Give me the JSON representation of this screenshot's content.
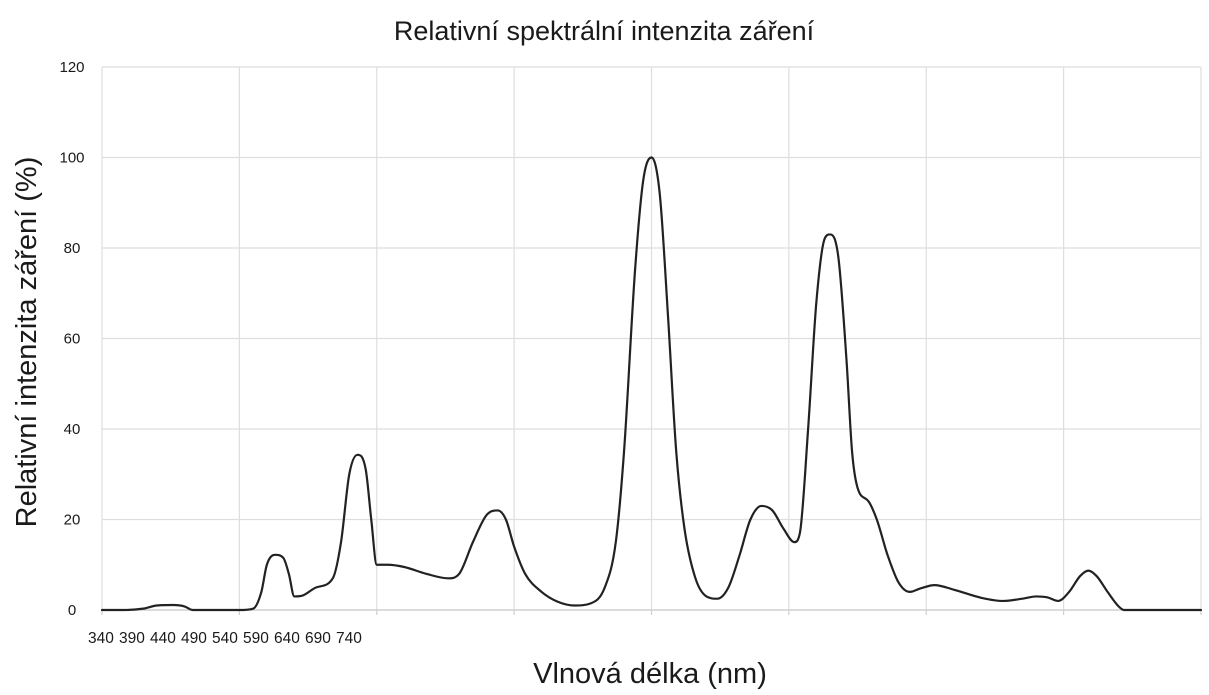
{
  "chart_data": {
    "type": "line",
    "title": "Relativní spektrální intenzita záření",
    "xlabel": "Vlnová délka (nm)",
    "ylabel": "Relativní intenzita záření (%)",
    "xlim": [
      340,
      740
    ],
    "ylim": [
      0,
      120
    ],
    "x_ticks": [
      "340",
      "390",
      "440",
      "490",
      "540",
      "590",
      "640",
      "690",
      "740"
    ],
    "y_ticks": [
      "0",
      "20",
      "40",
      "60",
      "80",
      "100",
      "120"
    ],
    "grid": true,
    "legend": "none",
    "line_color": "#222222",
    "series": [
      {
        "x": [
          340,
          348,
          355,
          360,
          366,
          370,
          373,
          380,
          390,
          395,
          398,
          400,
          403,
          406,
          408,
          410,
          413,
          418,
          424,
          427,
          430,
          433,
          436,
          438,
          440,
          444,
          450,
          458,
          466,
          470,
          475,
          480,
          484,
          487,
          490,
          494,
          500,
          506,
          512,
          518,
          523,
          527,
          530,
          534,
          537,
          540,
          543,
          546,
          549,
          552,
          556,
          560,
          564,
          568,
          572,
          576,
          580,
          584,
          588,
          592,
          594,
          597,
          600,
          603,
          605,
          608,
          611,
          613,
          615,
          619,
          622,
          626,
          630,
          634,
          638,
          643,
          650,
          660,
          668,
          675,
          680,
          684,
          688,
          692,
          696,
          699,
          702,
          706,
          710,
          712,
          720,
          740
        ],
        "y": [
          0,
          0,
          0.3,
          1,
          1.1,
          0.8,
          0,
          0,
          0,
          0.3,
          4,
          10,
          12.2,
          11.5,
          8,
          3,
          3.2,
          5,
          7,
          15,
          30,
          34.3,
          31,
          20,
          10,
          10,
          9.5,
          8,
          7,
          8,
          15,
          21,
          22,
          20,
          14,
          8,
          4,
          1.8,
          1,
          1.5,
          5,
          15,
          35,
          75,
          95,
          100,
          92,
          65,
          35,
          18,
          7,
          3,
          2.5,
          5,
          12,
          20,
          23,
          22,
          18,
          15,
          17,
          40,
          68,
          82,
          83,
          78,
          55,
          35,
          27,
          24,
          20,
          12,
          6,
          4,
          4.8,
          5.5,
          4.5,
          2.7,
          2,
          2.5,
          3,
          2.8,
          2,
          4,
          7.5,
          8.7,
          7.5,
          4,
          0.8,
          0,
          0,
          0
        ]
      }
    ]
  }
}
